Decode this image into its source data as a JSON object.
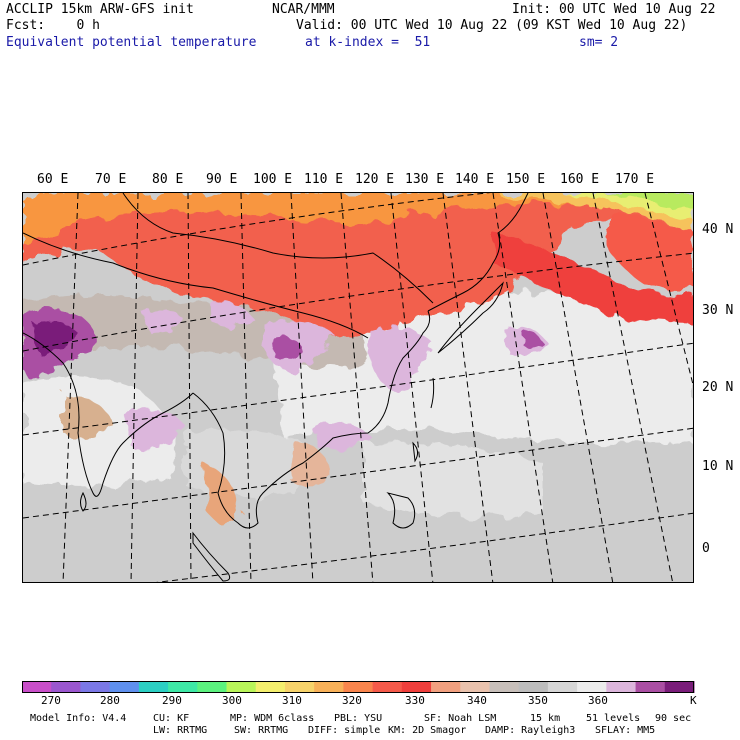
{
  "header": {
    "left_line1": "ACCLIP 15km ARW-GFS init",
    "left_line2": "Fcst:    0 h",
    "left_line3": "Equivalent potential temperature",
    "center_line1": "NCAR/MMM",
    "right_line1": "Init: 00 UTC Wed 10 Aug 22",
    "right_line2": "Valid: 00 UTC Wed 10 Aug 22 (09 KST Wed 10 Aug 22)",
    "right_line3a": "at k-index =  51",
    "right_line3b": "sm= 2"
  },
  "map": {
    "lon_labels": [
      "60 E",
      "70 E",
      "80 E",
      "90 E",
      "100 E",
      "110 E",
      "120 E",
      "130 E",
      "140 E",
      "150 E",
      "160 E",
      "170 E"
    ],
    "lat_labels": [
      "40 N",
      "30 N",
      "20 N",
      "10 N",
      "0"
    ],
    "region": "East Asia / Western Pacific"
  },
  "colorbar": {
    "colors": [
      "#c94fc9",
      "#9b57cf",
      "#7b78e6",
      "#5f90ee",
      "#2ccfc3",
      "#3ee8a6",
      "#5cf27f",
      "#b9f55a",
      "#f4ef6e",
      "#f7d36b",
      "#f8b159",
      "#f9854d",
      "#f55a4a",
      "#ef3f3c",
      "#f1a07f",
      "#e9c2ad",
      "#c7bfba",
      "#bdbdbd",
      "#d6d6d6",
      "#ececec",
      "#dcb6dc",
      "#aa4fa3",
      "#7a1d7a"
    ],
    "labels": [
      "270",
      "280",
      "290",
      "300",
      "310",
      "320",
      "330",
      "340",
      "350",
      "360"
    ],
    "unit": "K"
  },
  "footer": {
    "line1": [
      "Model Info: V4.4",
      "CU: KF",
      "MP: WDM 6class",
      "PBL: YSU",
      "SF: Noah LSM",
      "15 km",
      "51 levels",
      "90 sec"
    ],
    "line2": [
      "LW: RRTMG",
      "SW: RRTMG",
      "DIFF: simple",
      "KM: 2D Smagor",
      "DAMP: Rayleigh3",
      "SFLAY: MM5"
    ]
  }
}
